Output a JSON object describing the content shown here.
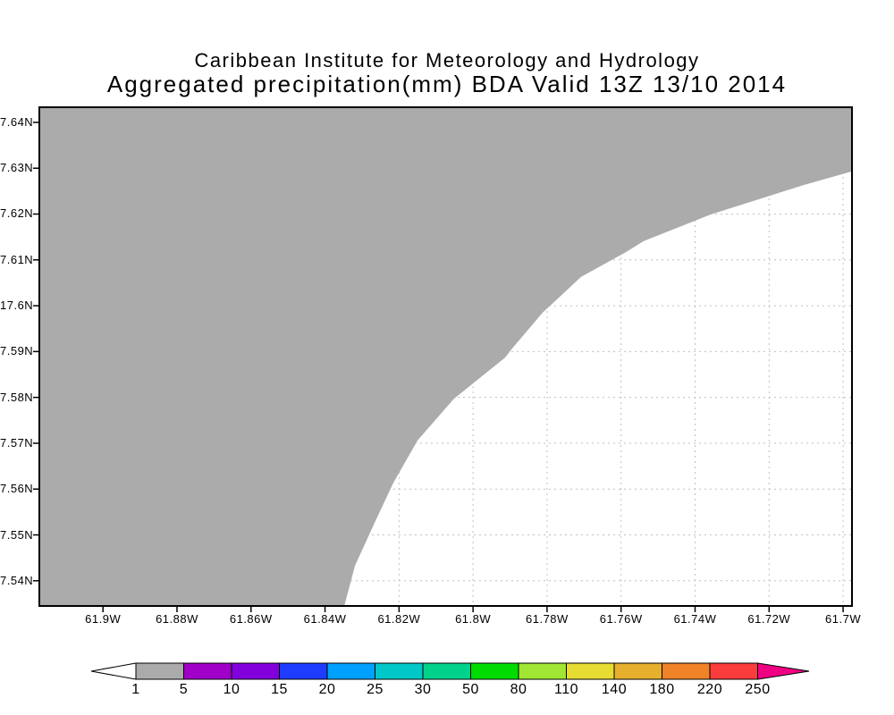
{
  "title": {
    "line1": "Caribbean Institute for Meteorology and Hydrology",
    "line2": "Aggregated precipitation(mm) BDA Valid 13Z 13/10 2014"
  },
  "axes": {
    "x": {
      "range": [
        -61.9172,
        -61.6976
      ],
      "ticks": [
        {
          "label": "61.9W",
          "lon": -61.9
        },
        {
          "label": "61.88W",
          "lon": -61.88
        },
        {
          "label": "61.86W",
          "lon": -61.86
        },
        {
          "label": "61.84W",
          "lon": -61.84
        },
        {
          "label": "61.82W",
          "lon": -61.82
        },
        {
          "label": "61.8W",
          "lon": -61.8
        },
        {
          "label": "61.78W",
          "lon": -61.78
        },
        {
          "label": "61.76W",
          "lon": -61.76
        },
        {
          "label": "61.74W",
          "lon": -61.74
        },
        {
          "label": "61.72W",
          "lon": -61.72
        },
        {
          "label": "61.7W",
          "lon": -61.7
        }
      ]
    },
    "y": {
      "range": [
        17.5345,
        17.6433
      ],
      "ticks": [
        {
          "label": "7.64N",
          "lat": 17.64
        },
        {
          "label": "7.63N",
          "lat": 17.63
        },
        {
          "label": "7.62N",
          "lat": 17.62
        },
        {
          "label": "7.61N",
          "lat": 17.61
        },
        {
          "label": "17.6N",
          "lat": 17.6
        },
        {
          "label": "7.59N",
          "lat": 17.59
        },
        {
          "label": "7.58N",
          "lat": 17.58
        },
        {
          "label": "7.57N",
          "lat": 17.57
        },
        {
          "label": "7.56N",
          "lat": 17.56
        },
        {
          "label": "7.55N",
          "lat": 17.55
        },
        {
          "label": "7.54N",
          "lat": 17.54
        }
      ]
    }
  },
  "map": {
    "shade_fill_color": "#ababab",
    "grid_color": "#bfbfbf",
    "border_color": "#000000",
    "background_color": "#ffffff"
  },
  "colorbar": {
    "labels": [
      "1",
      "5",
      "10",
      "15",
      "20",
      "25",
      "30",
      "50",
      "80",
      "110",
      "140",
      "180",
      "220",
      "250"
    ],
    "segment_colors": [
      "#ababab",
      "#a000c8",
      "#8200dc",
      "#1e3cff",
      "#00a0ff",
      "#00c8c8",
      "#00d28c",
      "#00dc00",
      "#a0e632",
      "#e6dc32",
      "#e6af2d",
      "#f08228",
      "#fa3c3c"
    ],
    "left_arrow_color": "#ffffff",
    "right_arrow_color": "#f00082"
  },
  "chart_data": {
    "type": "heatmap",
    "subtype": "filled_contour_precipitation_map",
    "title": "Aggregated precipitation(mm) BDA Valid 13Z 13/10 2014",
    "institution": "Caribbean Institute for Meteorology and Hydrology",
    "variable": "Aggregated precipitation",
    "units": "mm",
    "region_code": "BDA",
    "valid_time": "13Z 13/10 2014",
    "lon_range_deg_west": [
      61.9172,
      61.6976
    ],
    "lat_range_deg_north": [
      17.5345,
      17.6433
    ],
    "grid": "dotted graticule every 0.02 deg lon / 0.01 deg lat",
    "legend_position": "bottom horizontal colorbar with out-of-range arrows",
    "levels_mm": [
      1,
      5,
      10,
      15,
      20,
      25,
      30,
      50,
      80,
      110,
      140,
      180,
      220,
      250
    ],
    "palette": [
      "#ababab",
      "#a000c8",
      "#8200dc",
      "#1e3cff",
      "#00a0ff",
      "#00c8c8",
      "#00d28c",
      "#00dc00",
      "#a0e632",
      "#e6dc32",
      "#e6af2d",
      "#f08228",
      "#fa3c3c"
    ],
    "shading_summary": "Single shaded class visible: 1-5 mm (gray) covers the entire northwest/most of the domain; values below 1 mm (white) occupy the southeast corner, separated by one smooth contour from the bottom edge near 61.835W up to the right edge near 17.629N",
    "contour_1mm_lonlat": [
      [
        -61.8348,
        17.5345
      ],
      [
        -61.8319,
        17.5433
      ],
      [
        -61.8268,
        17.5523
      ],
      [
        -61.8215,
        17.5614
      ],
      [
        -61.815,
        17.5706
      ],
      [
        -61.8053,
        17.5796
      ],
      [
        -61.7913,
        17.5887
      ],
      [
        -61.7894,
        17.5907
      ],
      [
        -61.7812,
        17.5985
      ],
      [
        -61.7708,
        17.6063
      ],
      [
        -61.7587,
        17.6117
      ],
      [
        -61.7539,
        17.6141
      ],
      [
        -61.7358,
        17.6199
      ],
      [
        -61.7104,
        17.6264
      ],
      [
        -61.6976,
        17.6293
      ]
    ]
  }
}
